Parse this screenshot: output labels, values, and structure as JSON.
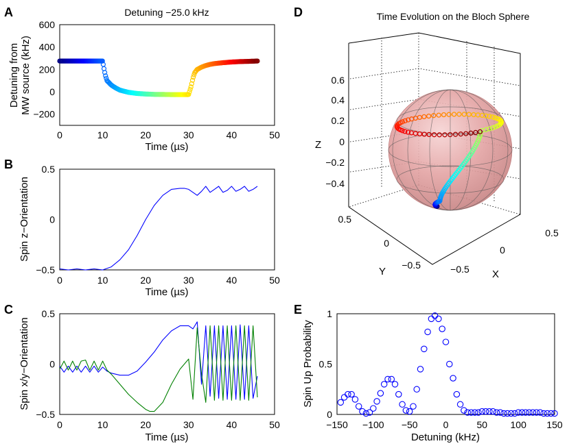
{
  "panels": {
    "A": {
      "letter": "A",
      "title": "Detuning −25.0 kHz",
      "xlabel": "Time (µs)",
      "ylabel_line1": "Detuning from",
      "ylabel_line2": "MW source (kHz)",
      "xticks": [
        "0",
        "10",
        "20",
        "30",
        "40",
        "50"
      ],
      "yticks": [
        "600",
        "400",
        "200",
        "0",
        "−200"
      ]
    },
    "B": {
      "letter": "B",
      "xlabel": "Time (µs)",
      "ylabel": "Spin z−Orientation",
      "xticks": [
        "0",
        "10",
        "20",
        "30",
        "40",
        "50"
      ],
      "yticks": [
        "0.5",
        "0",
        "−0.5"
      ]
    },
    "C": {
      "letter": "C",
      "xlabel": "Time (µs)",
      "ylabel": "Spin x/y−Orientation",
      "xticks": [
        "0",
        "10",
        "20",
        "30",
        "40",
        "50"
      ],
      "yticks": [
        "0.5",
        "0",
        "−0.5"
      ]
    },
    "D": {
      "letter": "D",
      "title": "Time Evolution on the Bloch Sphere",
      "zlabel": "Z",
      "ylabel": "Y",
      "xlabel": "X",
      "zticks": [
        "0.6",
        "0.4",
        "0.2",
        "0",
        "−0.2",
        "−0.4"
      ],
      "yticks": [
        "0.5",
        "0",
        "−0.5"
      ],
      "xticks": [
        "−0.5",
        "0",
        "0.5"
      ]
    },
    "E": {
      "letter": "E",
      "xlabel": "Detuning (kHz)",
      "ylabel": "Spin Up Probability",
      "xticks": [
        "−150",
        "−100",
        "−50",
        "0",
        "50",
        "100",
        "150"
      ],
      "yticks": [
        "1",
        "0.5",
        "0"
      ]
    }
  },
  "colors": {
    "blue": "#0000ff",
    "green": "#008000",
    "sphere": "#e8a0a0",
    "trajectory_start": "#00008b",
    "trajectory_end": "#8b0000"
  },
  "chart_data": [
    {
      "panel": "A",
      "type": "scatter",
      "title": "Detuning −25.0 kHz",
      "xlabel": "Time (µs)",
      "ylabel": "Detuning from MW source (kHz)",
      "xlim": [
        0,
        50
      ],
      "ylim": [
        -300,
        600
      ],
      "colormap": "jet",
      "x": [
        0,
        2,
        4,
        6,
        8,
        10,
        10.2,
        10.6,
        11,
        12,
        13,
        14,
        15,
        16,
        18,
        20,
        22,
        24,
        26,
        28,
        30,
        30.6,
        31,
        31.4,
        32,
        33,
        34,
        35,
        36,
        38,
        40,
        42,
        44,
        46
      ],
      "y": [
        275,
        275,
        275,
        275,
        275,
        275,
        225,
        150,
        100,
        60,
        35,
        15,
        5,
        -5,
        -15,
        -20,
        -23,
        -24,
        -25,
        -25,
        -25,
        50,
        120,
        170,
        200,
        220,
        235,
        245,
        252,
        260,
        266,
        270,
        272,
        275
      ]
    },
    {
      "panel": "B",
      "type": "line",
      "xlabel": "Time (µs)",
      "ylabel": "Spin z−Orientation",
      "xlim": [
        0,
        50
      ],
      "ylim": [
        -0.5,
        0.5
      ],
      "series": [
        {
          "x": [
            0,
            2,
            4,
            6,
            8,
            10,
            12,
            14,
            16,
            18,
            20,
            22,
            24,
            26,
            28,
            29,
            30,
            31,
            32,
            33,
            34,
            35,
            36,
            37,
            38,
            39,
            40,
            41,
            42,
            43,
            44,
            45,
            46
          ],
          "y": [
            -0.49,
            -0.5,
            -0.49,
            -0.5,
            -0.49,
            -0.5,
            -0.47,
            -0.4,
            -0.3,
            -0.16,
            0.0,
            0.14,
            0.24,
            0.3,
            0.31,
            0.31,
            0.3,
            0.27,
            0.24,
            0.28,
            0.33,
            0.27,
            0.3,
            0.33,
            0.27,
            0.29,
            0.33,
            0.28,
            0.3,
            0.33,
            0.28,
            0.3,
            0.33
          ]
        }
      ]
    },
    {
      "panel": "C",
      "type": "line",
      "xlabel": "Time (µs)",
      "ylabel": "Spin x/y−Orientation",
      "xlim": [
        0,
        50
      ],
      "ylim": [
        -0.5,
        0.5
      ],
      "series": [
        {
          "color": "blue",
          "x": [
            0,
            1,
            2,
            3,
            4,
            5,
            6,
            7,
            8,
            9,
            10,
            11,
            12,
            14,
            16,
            18,
            20,
            22,
            24,
            26,
            28,
            30,
            31,
            32,
            33,
            34,
            35,
            36,
            37,
            38,
            39,
            40,
            41,
            42,
            43,
            44,
            45,
            46
          ],
          "y": [
            -0.02,
            -0.08,
            -0.02,
            -0.08,
            -0.02,
            -0.08,
            -0.02,
            -0.08,
            -0.02,
            -0.08,
            -0.03,
            -0.07,
            -0.09,
            -0.11,
            -0.11,
            -0.07,
            0.02,
            0.12,
            0.24,
            0.33,
            0.38,
            0.38,
            0.35,
            0.42,
            -0.2,
            0.38,
            -0.32,
            0.38,
            -0.34,
            0.38,
            -0.35,
            0.38,
            -0.35,
            0.39,
            -0.35,
            0.38,
            -0.34,
            -0.12
          ]
        },
        {
          "color": "green",
          "x": [
            0,
            1,
            2,
            3,
            4,
            5,
            6,
            7,
            8,
            9,
            10,
            11,
            12,
            14,
            16,
            18,
            20,
            21,
            22,
            24,
            26,
            28,
            30,
            31,
            32,
            33,
            34,
            35,
            36,
            37,
            38,
            39,
            40,
            41,
            42,
            43,
            44,
            45,
            46
          ],
          "y": [
            -0.05,
            0.03,
            -0.06,
            0.03,
            -0.06,
            0.03,
            0.04,
            -0.06,
            0.03,
            -0.06,
            0.03,
            -0.06,
            -0.1,
            -0.2,
            -0.3,
            -0.38,
            -0.45,
            -0.47,
            -0.47,
            -0.38,
            -0.2,
            -0.05,
            0.05,
            -0.35,
            0.36,
            -0.1,
            -0.38,
            0.38,
            -0.36,
            0.38,
            -0.36,
            0.38,
            -0.36,
            0.38,
            -0.36,
            0.38,
            -0.36,
            0.38,
            -0.33
          ]
        }
      ]
    },
    {
      "panel": "D",
      "type": "scatter",
      "title": "Time Evolution on the Bloch Sphere",
      "xlabel": "X",
      "ylabel": "Y",
      "zlabel": "Z",
      "xlim": [
        -0.5,
        0.5
      ],
      "ylim": [
        -0.5,
        0.5
      ],
      "zlim": [
        -0.5,
        0.6
      ],
      "colormap": "jet",
      "trajectory": "starts at the south pole (z = −0.5), spirals upward and ends on a ring near z = 0.3"
    },
    {
      "panel": "E",
      "type": "scatter",
      "xlabel": "Detuning (kHz)",
      "ylabel": "Spin Up Probability",
      "xlim": [
        -150,
        150
      ],
      "ylim": [
        0,
        1
      ],
      "x": [
        -145,
        -140,
        -135,
        -130,
        -125,
        -120,
        -115,
        -110,
        -105,
        -100,
        -95,
        -90,
        -85,
        -80,
        -75,
        -70,
        -65,
        -60,
        -55,
        -50,
        -45,
        -40,
        -35,
        -30,
        -25,
        -20,
        -15,
        -10,
        -5,
        0,
        5,
        10,
        15,
        20,
        25,
        30,
        35,
        40,
        45,
        50,
        55,
        60,
        65,
        70,
        75,
        80,
        85,
        90,
        95,
        100,
        105,
        110,
        115,
        120,
        125,
        130,
        135,
        140,
        145,
        150
      ],
      "y": [
        0.12,
        0.17,
        0.2,
        0.2,
        0.15,
        0.08,
        0.03,
        0.01,
        0.02,
        0.06,
        0.13,
        0.21,
        0.3,
        0.35,
        0.35,
        0.3,
        0.2,
        0.1,
        0.04,
        0.03,
        0.08,
        0.25,
        0.45,
        0.65,
        0.82,
        0.95,
        0.98,
        0.95,
        0.85,
        0.72,
        0.5,
        0.36,
        0.2,
        0.1,
        0.04,
        0.02,
        0.02,
        0.02,
        0.02,
        0.03,
        0.03,
        0.03,
        0.03,
        0.02,
        0.02,
        0.01,
        0.01,
        0.01,
        0.01,
        0.02,
        0.02,
        0.02,
        0.02,
        0.02,
        0.02,
        0.02,
        0.01,
        0.01,
        0.01,
        0.01
      ]
    }
  ]
}
